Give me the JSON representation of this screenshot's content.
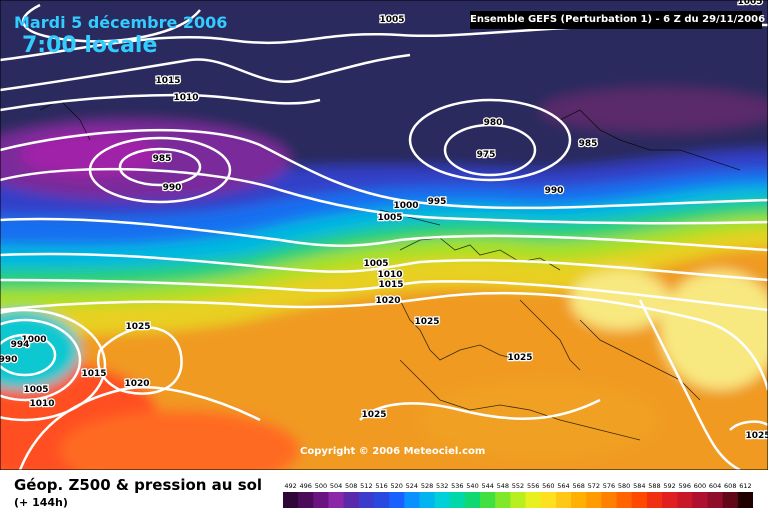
{
  "header": {
    "date": "Mardi 5 décembre 2006",
    "time": "7:00 locale",
    "run": "Ensemble GEFS (Perturbation 1)  -  6 Z du 29/11/2006"
  },
  "copyright": "Copyright © 2006 Meteociel.com",
  "footer": {
    "title": "Géop. Z500 & pression au sol",
    "subtitle": "(+ 144h)"
  },
  "legend": {
    "labels": [
      "492",
      "496",
      "500",
      "504",
      "508",
      "512",
      "516",
      "520",
      "524",
      "528",
      "532",
      "536",
      "540",
      "544",
      "548",
      "552",
      "556",
      "560",
      "564",
      "568",
      "572",
      "576",
      "580",
      "584",
      "588",
      "592",
      "596",
      "600",
      "604",
      "608",
      "612"
    ],
    "colors": [
      "#2e0638",
      "#4a0c58",
      "#6a1480",
      "#8a28a8",
      "#5a2aa8",
      "#3c3ccc",
      "#2848e0",
      "#1860ff",
      "#0a90ff",
      "#00b4f0",
      "#00d0d8",
      "#00d8a8",
      "#10d870",
      "#40e040",
      "#80e828",
      "#b8ef20",
      "#e8f020",
      "#ffe020",
      "#ffc818",
      "#ffb000",
      "#ff9a00",
      "#ff8000",
      "#ff6400",
      "#ff4800",
      "#f03010",
      "#e02020",
      "#c81828",
      "#b01030",
      "#900c28",
      "#600818",
      "#200000"
    ]
  },
  "isobars": {
    "labels": [
      {
        "text": "1005"
      },
      {
        "text": "1015"
      },
      {
        "text": "1010"
      },
      {
        "text": "985"
      },
      {
        "text": "990"
      },
      {
        "text": "980"
      },
      {
        "text": "975"
      },
      {
        "text": "985"
      },
      {
        "text": "990"
      },
      {
        "text": "995"
      },
      {
        "text": "1000"
      },
      {
        "text": "1005"
      },
      {
        "text": "1005"
      },
      {
        "text": "1010"
      },
      {
        "text": "1015"
      },
      {
        "text": "1020"
      },
      {
        "text": "1025"
      },
      {
        "text": "1025"
      },
      {
        "text": "1025"
      },
      {
        "text": "1025"
      },
      {
        "text": "1020"
      },
      {
        "text": "1015"
      },
      {
        "text": "1005"
      },
      {
        "text": "1010"
      },
      {
        "text": "1000"
      },
      {
        "text": "990"
      },
      {
        "text": "994"
      },
      {
        "text": "1005"
      },
      {
        "text": "1025"
      }
    ]
  }
}
